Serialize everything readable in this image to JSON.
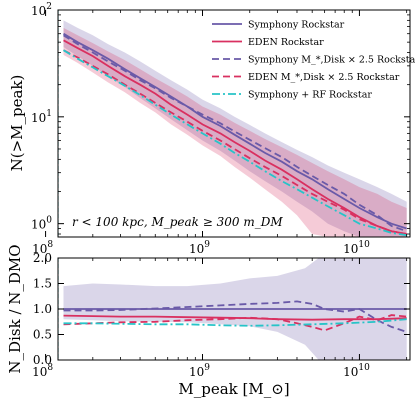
{
  "chart_data": [
    {
      "type": "line",
      "panel": "top",
      "ylabel": "N(>M_peak)",
      "yscale": "log",
      "xscale": "log",
      "xlim": [
        120000000.0,
        21000000000.0
      ],
      "ylim": [
        0.75,
        100
      ],
      "x_ticks": [
        100000000.0,
        1000000000.0,
        10000000000.0
      ],
      "x_tick_labels": [
        "10^8",
        "10^9",
        "10^10"
      ],
      "y_ticks": [
        1,
        10,
        100
      ],
      "y_tick_labels": [
        "10^0",
        "10^1",
        "10^2"
      ],
      "annotation": "r < 100 kpc,  M_peak ≥ 300 m_DM",
      "vertical_line_x": 120000000.0,
      "legend_location": "top-right",
      "series": [
        {
          "name": "Symphony Rockstar",
          "style": "solid",
          "color": "#6a5aa8",
          "x": [
            130000000.0,
            160000000.0,
            200000000.0,
            250000000.0,
            320000000.0,
            400000000.0,
            500000000.0,
            630000000.0,
            800000000.0,
            1000000000.0,
            1300000000.0,
            1600000000.0,
            2000000000.0,
            2500000000.0,
            3200000000.0,
            4000000000.0,
            5000000000.0,
            6300000000.0,
            8000000000.0,
            10000000000.0,
            13000000000.0,
            16000000000.0,
            20000000000.0
          ],
          "y": [
            60,
            50,
            42,
            35,
            28,
            23,
            19,
            15.5,
            12.5,
            10,
            8.2,
            6.8,
            5.6,
            4.6,
            3.8,
            3.1,
            2.6,
            2.1,
            1.7,
            1.4,
            1.15,
            1.0,
            0.9
          ],
          "band_low": [
            45,
            37,
            30,
            24,
            19,
            15,
            12,
            9.5,
            7.5,
            6,
            4.8,
            3.9,
            3.1,
            2.5,
            2,
            1.6,
            1.3,
            1.0,
            0.85,
            0.75,
            0.7,
            0.7,
            0.7
          ],
          "band_high": [
            80,
            68,
            58,
            48,
            40,
            33,
            27,
            22,
            18,
            14.5,
            12,
            10,
            8.4,
            7,
            5.8,
            4.9,
            4.2,
            3.5,
            3,
            2.6,
            2.2,
            1.9,
            1.6
          ]
        },
        {
          "name": "EDEN Rockstar",
          "style": "solid",
          "color": "#d93060",
          "x": [
            130000000.0,
            160000000.0,
            200000000.0,
            250000000.0,
            320000000.0,
            400000000.0,
            500000000.0,
            630000000.0,
            800000000.0,
            1000000000.0,
            1300000000.0,
            1600000000.0,
            2000000000.0,
            2500000000.0,
            3200000000.0,
            4000000000.0,
            5000000000.0,
            6300000000.0,
            8000000000.0,
            10000000000.0,
            13000000000.0,
            16000000000.0,
            20000000000.0
          ],
          "y": [
            52,
            44,
            37,
            30,
            24,
            20,
            16.5,
            13,
            10.5,
            8.5,
            7,
            5.8,
            4.8,
            3.9,
            3.2,
            2.6,
            2.1,
            1.7,
            1.4,
            1.15,
            0.95,
            0.85,
            0.8
          ],
          "band_low": [
            38,
            32,
            26,
            21,
            17,
            13.5,
            11,
            8.5,
            6.8,
            5.4,
            4.3,
            3.4,
            2.7,
            2.1,
            1.6,
            1.2,
            0.8,
            0.75,
            0.75,
            0.75,
            0.75,
            0.75,
            0.75
          ],
          "band_high": [
            68,
            58,
            49,
            41,
            34,
            28,
            23,
            19,
            15.5,
            12.5,
            10.5,
            8.8,
            7.4,
            6.2,
            5.2,
            4.4,
            3.7,
            3.1,
            2.6,
            2.2,
            1.9,
            1.6,
            1.4
          ]
        },
        {
          "name": "Symphony M_*,Disk × 2.5 Rockstar",
          "style": "dashed",
          "color": "#6a5aa8",
          "x": [
            130000000.0,
            160000000.0,
            200000000.0,
            250000000.0,
            320000000.0,
            400000000.0,
            500000000.0,
            630000000.0,
            800000000.0,
            1000000000.0,
            1300000000.0,
            1600000000.0,
            2000000000.0,
            2500000000.0,
            3200000000.0,
            4000000000.0,
            5000000000.0,
            6300000000.0,
            8000000000.0,
            10000000000.0,
            13000000000.0,
            16000000000.0,
            20000000000.0
          ],
          "y": [
            58,
            48,
            40,
            33,
            27,
            22,
            18.5,
            15,
            12.5,
            10.5,
            8.7,
            7.3,
            6.1,
            5.1,
            4.2,
            3.4,
            2.8,
            2.3,
            1.9,
            1.5,
            1.2,
            0.95,
            0.85
          ]
        },
        {
          "name": "EDEN M_*,Disk × 2.5 Rockstar",
          "style": "dashed",
          "color": "#d93060",
          "x": [
            130000000.0,
            160000000.0,
            200000000.0,
            250000000.0,
            320000000.0,
            400000000.0,
            500000000.0,
            630000000.0,
            800000000.0,
            1000000000.0,
            1300000000.0,
            1600000000.0,
            2000000000.0,
            2500000000.0,
            3200000000.0,
            4000000000.0,
            5000000000.0,
            6300000000.0,
            8000000000.0,
            10000000000.0,
            13000000000.0,
            16000000000.0,
            20000000000.0
          ],
          "y": [
            42,
            36,
            30,
            25,
            20,
            16.5,
            13.5,
            11,
            9,
            7.4,
            6,
            5,
            4.1,
            3.4,
            2.8,
            2.3,
            1.9,
            1.6,
            1.35,
            1.1,
            0.95,
            0.85,
            0.8
          ]
        },
        {
          "name": "Symphony + RF Rockstar",
          "style": "dashdot",
          "color": "#27c4c8",
          "x": [
            130000000.0,
            160000000.0,
            200000000.0,
            250000000.0,
            320000000.0,
            400000000.0,
            500000000.0,
            630000000.0,
            800000000.0,
            1000000000.0,
            1300000000.0,
            1600000000.0,
            2000000000.0,
            2500000000.0,
            3200000000.0,
            4000000000.0,
            5000000000.0,
            6300000000.0,
            8000000000.0,
            10000000000.0,
            13000000000.0,
            16000000000.0,
            20000000000.0
          ],
          "y": [
            42,
            35,
            29,
            24,
            19.5,
            16,
            13,
            10.5,
            8.5,
            7,
            5.6,
            4.6,
            3.8,
            3.1,
            2.5,
            2.1,
            1.75,
            1.45,
            1.2,
            1.0,
            0.9,
            0.82,
            0.78
          ]
        }
      ]
    },
    {
      "type": "line",
      "panel": "bottom",
      "xlabel": "M_peak [M_⊙]",
      "ylabel": "N_Disk / N_DMO",
      "xscale": "log",
      "xlim": [
        120000000.0,
        21000000000.0
      ],
      "ylim": [
        0.0,
        2.0
      ],
      "x_ticks": [
        100000000.0,
        1000000000.0,
        10000000000.0
      ],
      "x_tick_labels": [
        "10^8",
        "10^9",
        "10^10"
      ],
      "y_ticks": [
        0.0,
        0.5,
        1.0,
        1.5,
        2.0
      ],
      "y_tick_labels": [
        "0.0",
        "0.5",
        "1.0",
        "1.5",
        "2.0"
      ],
      "vertical_line_x": 120000000.0,
      "band": {
        "color": "#6a5aa8",
        "x": [
          130000000.0,
          200000000.0,
          300000000.0,
          500000000.0,
          800000000.0,
          1300000000.0,
          2000000000.0,
          3000000000.0,
          4500000000.0,
          5500000000.0,
          7000000000.0,
          10000000000.0,
          15000000000.0,
          20000000000.0
        ],
        "low": [
          0.8,
          0.78,
          0.76,
          0.75,
          0.74,
          0.7,
          0.66,
          0.55,
          0.3,
          0.0,
          0.0,
          0.0,
          0.0,
          0.0
        ],
        "high": [
          1.45,
          1.5,
          1.48,
          1.45,
          1.45,
          1.5,
          1.6,
          1.65,
          1.8,
          2.0,
          2.0,
          2.0,
          2.0,
          2.0
        ]
      },
      "series": [
        {
          "style": "solid",
          "color": "#6a5aa8",
          "x": [
            130000000.0,
            20000000000.0
          ],
          "y": [
            1.0,
            1.0
          ]
        },
        {
          "style": "solid",
          "color": "#d93060",
          "x": [
            130000000.0,
            200000000.0,
            300000000.0,
            500000000.0,
            800000000.0,
            1300000000.0,
            2000000000.0,
            3000000000.0,
            5000000000.0,
            8000000000.0,
            13000000000.0,
            20000000000.0
          ],
          "y": [
            0.87,
            0.86,
            0.85,
            0.85,
            0.84,
            0.83,
            0.82,
            0.8,
            0.79,
            0.8,
            0.8,
            0.82
          ]
        },
        {
          "style": "dashed",
          "color": "#6a5aa8",
          "x": [
            130000000.0,
            200000000.0,
            300000000.0,
            500000000.0,
            800000000.0,
            1300000000.0,
            2000000000.0,
            3000000000.0,
            4000000000.0,
            5000000000.0,
            6000000000.0,
            8000000000.0,
            10000000000.0,
            13000000000.0,
            16000000000.0,
            20000000000.0
          ],
          "y": [
            0.97,
            0.97,
            0.98,
            1.01,
            1.04,
            1.07,
            1.1,
            1.12,
            1.15,
            1.1,
            1.0,
            0.95,
            1.0,
            0.78,
            0.65,
            0.55
          ]
        },
        {
          "style": "dashed",
          "color": "#d93060",
          "x": [
            130000000.0,
            200000000.0,
            300000000.0,
            500000000.0,
            800000000.0,
            1300000000.0,
            2000000000.0,
            3000000000.0,
            4000000000.0,
            5000000000.0,
            6000000000.0,
            8000000000.0,
            10000000000.0,
            13000000000.0,
            16000000000.0,
            20000000000.0
          ],
          "y": [
            0.7,
            0.72,
            0.74,
            0.75,
            0.78,
            0.8,
            0.83,
            0.8,
            0.72,
            0.65,
            0.58,
            0.72,
            0.85,
            0.78,
            0.88,
            0.85
          ]
        },
        {
          "style": "dashdot",
          "color": "#27c4c8",
          "x": [
            130000000.0,
            200000000.0,
            300000000.0,
            500000000.0,
            800000000.0,
            1300000000.0,
            2000000000.0,
            3000000000.0,
            5000000000.0,
            8000000000.0,
            13000000000.0,
            20000000000.0
          ],
          "y": [
            0.72,
            0.72,
            0.71,
            0.7,
            0.7,
            0.68,
            0.67,
            0.68,
            0.7,
            0.72,
            0.75,
            0.8
          ]
        }
      ]
    }
  ]
}
